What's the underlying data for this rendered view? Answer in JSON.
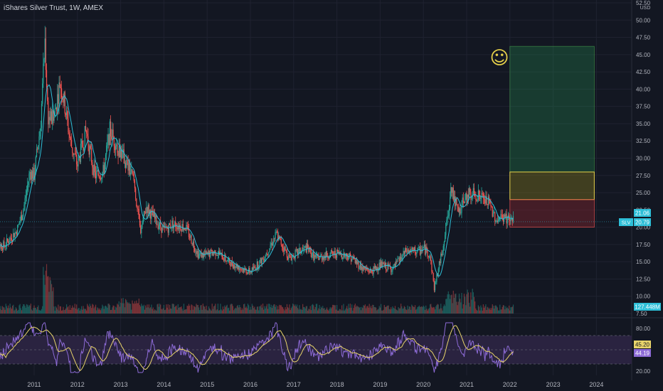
{
  "title": "iShares Silver Trust, 1W, AMEX",
  "currency": "USD",
  "colors": {
    "background": "#131722",
    "grid": "#1f2230",
    "up": "#26a69a",
    "down": "#ef5350",
    "ma": "#2ebfd8",
    "rsi": "#8d6bd6",
    "rsi_ma": "#e8d46a",
    "rsi_band": "#2a2340",
    "axis_text": "#b2b5be"
  },
  "chart_data": {
    "type": "candlestick",
    "symbol": "SLV",
    "interval": "1W",
    "x_tick_labels": [
      "2011",
      "2012",
      "2013",
      "2014",
      "2015",
      "2016",
      "2017",
      "2018",
      "2019",
      "2020",
      "2021",
      "2022",
      "2023",
      "2024"
    ],
    "price_axis": {
      "ylim": [
        7.5,
        52.5
      ],
      "ticks": [
        "52.50",
        "50.00",
        "47.50",
        "45.00",
        "42.50",
        "40.00",
        "37.50",
        "35.00",
        "32.50",
        "30.00",
        "27.50",
        "25.00",
        "22.50",
        "20.00",
        "17.50",
        "15.00",
        "12.50",
        "10.00",
        "7.50"
      ]
    },
    "price_path": [
      [
        2010.0,
        17.8
      ],
      [
        2010.3,
        17.3
      ],
      [
        2010.6,
        19.5
      ],
      [
        2010.75,
        22.5
      ],
      [
        2010.9,
        28.0
      ],
      [
        2011.0,
        27.5
      ],
      [
        2011.15,
        35.0
      ],
      [
        2011.25,
        47.0
      ],
      [
        2011.32,
        36.0
      ],
      [
        2011.45,
        35.5
      ],
      [
        2011.6,
        41.0
      ],
      [
        2011.7,
        38.0
      ],
      [
        2011.85,
        32.0
      ],
      [
        2012.0,
        29.0
      ],
      [
        2012.2,
        34.0
      ],
      [
        2012.4,
        27.5
      ],
      [
        2012.6,
        28.0
      ],
      [
        2012.75,
        34.0
      ],
      [
        2012.9,
        32.0
      ],
      [
        2013.0,
        31.0
      ],
      [
        2013.3,
        27.0
      ],
      [
        2013.45,
        19.5
      ],
      [
        2013.6,
        23.0
      ],
      [
        2013.8,
        21.0
      ],
      [
        2014.0,
        19.5
      ],
      [
        2014.2,
        20.5
      ],
      [
        2014.5,
        20.0
      ],
      [
        2014.8,
        16.0
      ],
      [
        2015.0,
        16.0
      ],
      [
        2015.2,
        16.5
      ],
      [
        2015.5,
        15.0
      ],
      [
        2015.8,
        14.0
      ],
      [
        2016.0,
        13.5
      ],
      [
        2016.3,
        15.5
      ],
      [
        2016.6,
        19.0
      ],
      [
        2016.9,
        15.5
      ],
      [
        2017.0,
        16.0
      ],
      [
        2017.3,
        17.0
      ],
      [
        2017.5,
        15.5
      ],
      [
        2017.8,
        16.0
      ],
      [
        2018.0,
        16.2
      ],
      [
        2018.3,
        15.8
      ],
      [
        2018.6,
        14.0
      ],
      [
        2018.8,
        13.6
      ],
      [
        2019.0,
        14.5
      ],
      [
        2019.3,
        14.0
      ],
      [
        2019.6,
        16.5
      ],
      [
        2019.9,
        16.5
      ],
      [
        2020.0,
        17.0
      ],
      [
        2020.15,
        16.0
      ],
      [
        2020.25,
        11.2
      ],
      [
        2020.4,
        15.5
      ],
      [
        2020.55,
        21.0
      ],
      [
        2020.65,
        26.0
      ],
      [
        2020.8,
        22.0
      ],
      [
        2020.95,
        24.0
      ],
      [
        2021.1,
        25.0
      ],
      [
        2021.3,
        24.5
      ],
      [
        2021.5,
        23.5
      ],
      [
        2021.7,
        21.0
      ],
      [
        2021.85,
        21.5
      ],
      [
        2022.0,
        21.0
      ],
      [
        2022.08,
        20.8
      ]
    ],
    "current_price": "20.79",
    "prev_close": "21.06",
    "volume": "127.448M",
    "rsi": {
      "ylim": [
        20,
        80
      ],
      "ticks": [
        "80.00",
        "20.00"
      ],
      "bands": [
        70,
        50,
        30
      ],
      "last_value": "44.19",
      "ma_last_value": "45.20"
    },
    "long_position": {
      "x_start": 2022.0,
      "x_end": 2023.95,
      "target": 46.2,
      "mid_entry": 28.0,
      "entry": 24.0,
      "stop": 20.0
    },
    "annotation_icon": "smiley-face"
  }
}
